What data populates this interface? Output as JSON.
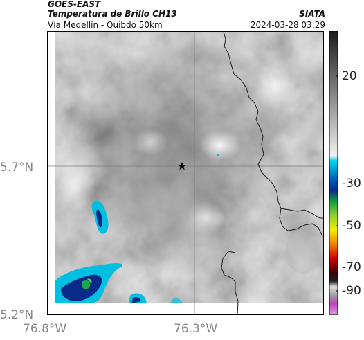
{
  "header": {
    "satellite": "GOES-EAST",
    "product": "Temperatura de Brillo CH13",
    "location": "Vía Medellín - Quibdó 50km",
    "org": "SIATA",
    "timestamp": "2024-03-28 03:29"
  },
  "axes": {
    "lat_labels": [
      "5.7°N",
      "5.2°N"
    ],
    "lon_labels": [
      "76.8°W",
      "76.3°W"
    ]
  },
  "colorbar": {
    "ticks": [
      "20",
      "-30",
      "-50",
      "-70",
      "-90"
    ]
  },
  "colors": {
    "cold_cyan": "#00bfe0",
    "deep_blue": "#0a2a8a",
    "green": "#1aa84a",
    "border_line": "#1a1a1a"
  },
  "icons": {
    "marker": "star-icon"
  }
}
